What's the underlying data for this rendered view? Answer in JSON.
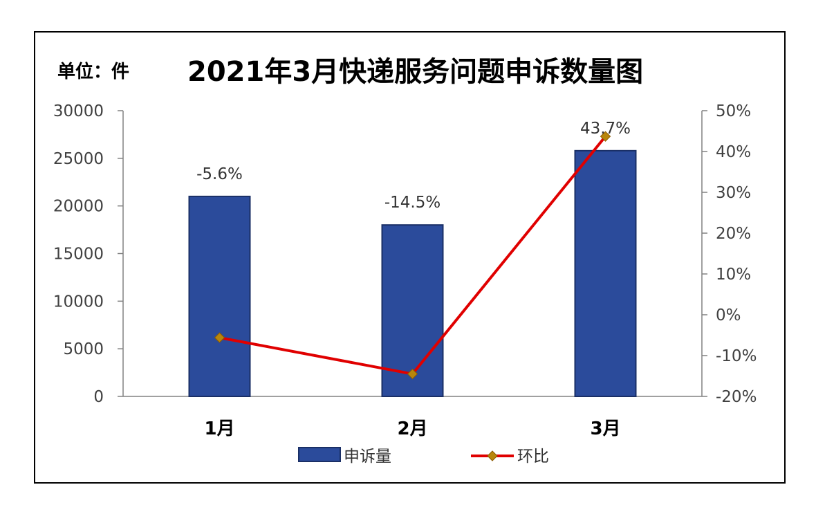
{
  "unit_label": "单位：件",
  "chart_data": {
    "type": "bar",
    "title": "2021年3月快递服务问题申诉数量图",
    "categories": [
      "1月",
      "2月",
      "3月"
    ],
    "series": [
      {
        "name": "申诉量",
        "type": "bar",
        "axis": "left",
        "values": [
          21000,
          18000,
          25800
        ]
      },
      {
        "name": "环比",
        "type": "line",
        "axis": "right",
        "values": [
          -5.6,
          -14.5,
          43.7
        ]
      }
    ],
    "data_labels": [
      "-5.6%",
      "-14.5%",
      "43.7%"
    ],
    "y_left": {
      "min": 0,
      "max": 30000,
      "step": 5000,
      "ticks": [
        "0",
        "5000",
        "10000",
        "15000",
        "20000",
        "25000",
        "30000"
      ]
    },
    "y_right": {
      "min": -20,
      "max": 50,
      "step": 10,
      "ticks": [
        "-20%",
        "-10%",
        "0%",
        "10%",
        "20%",
        "30%",
        "40%",
        "50%"
      ]
    },
    "grid": false,
    "legend": "bottom",
    "colors": {
      "bar": "#2b4b9b",
      "bar_border": "#1a2f66",
      "line": "#e00000",
      "marker": "#b8860b"
    }
  }
}
